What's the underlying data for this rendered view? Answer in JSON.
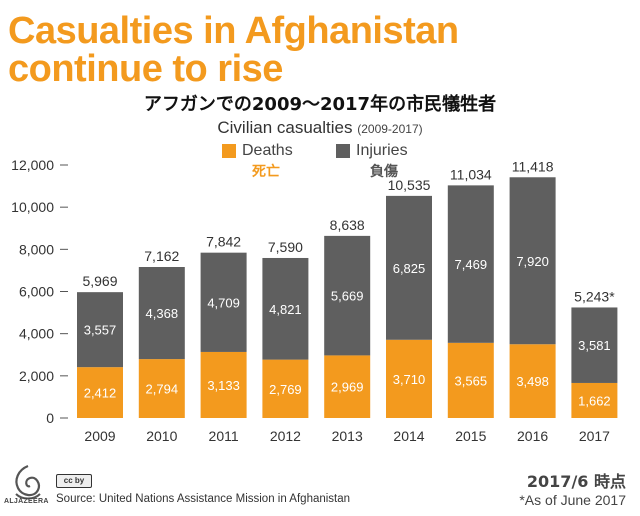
{
  "headline": {
    "line1": "Casualties in Afghanistan",
    "line2": "continue to rise"
  },
  "jp_title": "アフガンでの2009〜2017年の市民犠牲者",
  "chart_data": {
    "type": "bar",
    "stacked": true,
    "title": "Civilian casualties",
    "subtitle": "(2009-2017)",
    "categories": [
      "2009",
      "2010",
      "2011",
      "2012",
      "2013",
      "2014",
      "2015",
      "2016",
      "2017"
    ],
    "series": [
      {
        "name": "Deaths",
        "name_jp": "死亡",
        "color": "#f39a1e",
        "values": [
          2412,
          2794,
          3133,
          2769,
          2969,
          3710,
          3565,
          3498,
          1662
        ],
        "labels": [
          "2,412",
          "2,794",
          "3,133",
          "2,769",
          "2,969",
          "3,710",
          "3,565",
          "3,498",
          "1,662"
        ]
      },
      {
        "name": "Injuries",
        "name_jp": "負傷",
        "color": "#5f5f5f",
        "values": [
          3557,
          4368,
          4709,
          4821,
          5669,
          6825,
          7469,
          7920,
          3581
        ],
        "labels": [
          "3,557",
          "4,368",
          "4,709",
          "4,821",
          "5,669",
          "6,825",
          "7,469",
          "7,920",
          "3,581"
        ]
      }
    ],
    "totals": [
      "5,969",
      "7,162",
      "7,842",
      "7,590",
      "8,638",
      "10,535",
      "11,034",
      "11,418",
      "5,243*"
    ],
    "total_values": [
      5969,
      7162,
      7842,
      7590,
      8638,
      10535,
      11034,
      11418,
      5243
    ],
    "ylim": [
      0,
      12000
    ],
    "yticks": [
      0,
      2000,
      4000,
      6000,
      8000,
      10000,
      12000
    ],
    "ytick_labels": [
      "0",
      "2,000",
      "4,000",
      "6,000",
      "8,000",
      "10,000",
      "12,000"
    ],
    "xlabel": "",
    "ylabel": ""
  },
  "footer": {
    "logo_text": "ALJAZEERA",
    "cc_badge": "cc by",
    "source": "Source: United Nations Assistance Mission in Afghanistan",
    "asof_jp": "2017/6 時点",
    "asof_en": "*As of June 2017"
  }
}
